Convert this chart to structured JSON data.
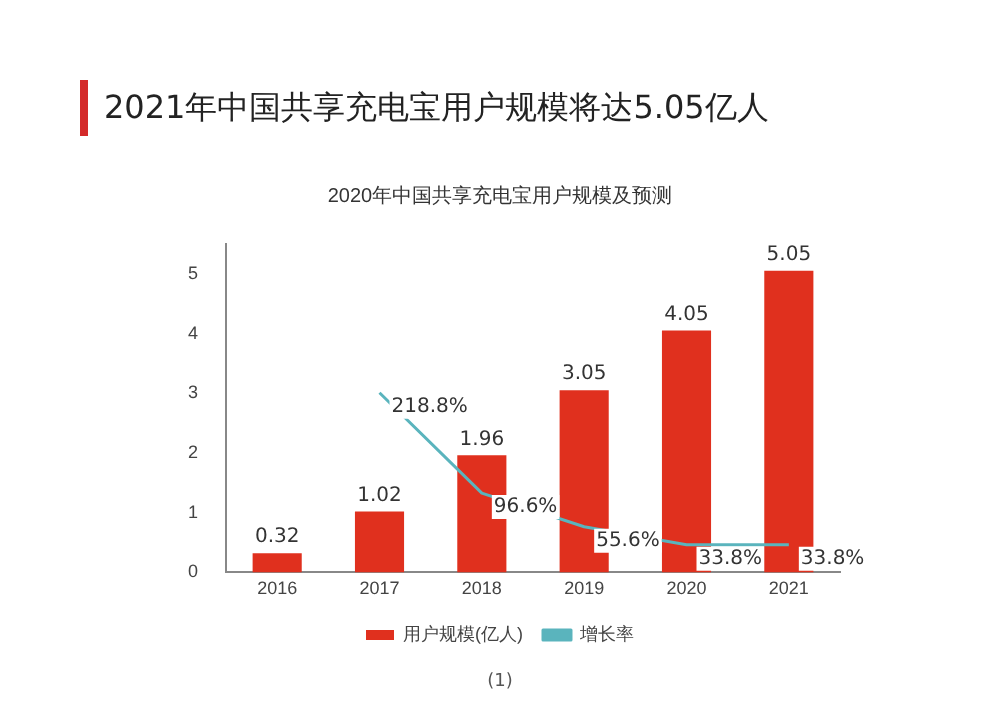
{
  "chart_data": {
    "type": "bar",
    "title": "2021年中国共享充电宝用户规模将达5.05亿人",
    "subtitle": "2020年中国共享充电宝用户规模及预测",
    "categories": [
      "2016",
      "2017",
      "2018",
      "2019",
      "2020",
      "2021"
    ],
    "series": [
      {
        "name": "用户规模(亿人)",
        "color": "#e0301e",
        "values": [
          0.32,
          1.02,
          1.96,
          3.05,
          4.05,
          5.05
        ]
      },
      {
        "name": "增长率",
        "type": "line",
        "axis": "y2",
        "color": "#5ab4bd",
        "values": [
          null,
          218.8,
          96.6,
          55.6,
          33.8,
          33.8
        ],
        "value_labels": [
          null,
          "218.8%",
          "96.6%",
          "55.6%",
          "33.8%",
          "33.8%"
        ]
      }
    ],
    "ylim": [
      0,
      5.5
    ],
    "yticks": [
      0,
      1,
      2,
      3,
      4,
      5
    ],
    "data_labels": true,
    "grid": false,
    "legend": "bottom",
    "marker": "none",
    "annotations": [
      "(1)"
    ]
  }
}
